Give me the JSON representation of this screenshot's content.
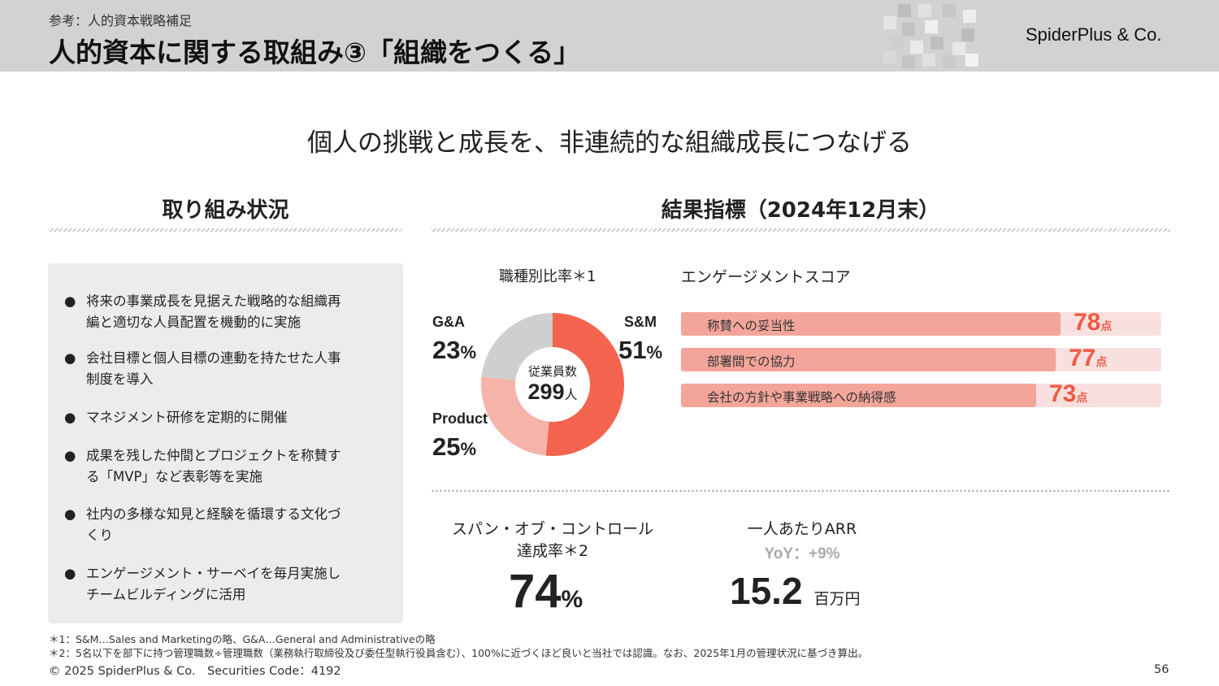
{
  "header": {
    "section_label": "参考：人的資本戦略補足",
    "title": "人的資本に関する取組み③「組織をつくる」",
    "logo": "SpiderPlus & Co."
  },
  "subtitle": "個人の挑戦と成長を、非連続的な組織成長につなげる",
  "left": {
    "heading": "取り組み状況",
    "bullets": [
      [
        "将来の事業成長を見据えた戦略的な組織再",
        "編と適切な人員配置を機動的に実施"
      ],
      [
        "会社目標と個人目標の連動を持たせた人事",
        "制度を導入"
      ],
      [
        "マネジメント研修を定期的に開催"
      ],
      [
        "成果を残した仲間とプロジェクトを称賛す",
        "る「MVP」など表彰等を実施"
      ],
      [
        "社内の多様な知見と経験を循環する文化づ",
        "くり"
      ],
      [
        "エンゲージメント・サーベイを毎月実施し",
        "チームビルディングに活用"
      ]
    ],
    "bullet_char": "●"
  },
  "right": {
    "heading": "結果指標（2024年12月末）"
  },
  "chart_data": [
    {
      "type": "pie",
      "title": "職種別比率＊1",
      "categories": [
        "S&M",
        "Product",
        "G&A"
      ],
      "values": [
        51,
        25,
        23
      ],
      "value_labels": [
        "51",
        "25",
        "23"
      ],
      "unit": "%",
      "colors": [
        "#f4644e",
        "#f6b3a9",
        "#cfcfcf"
      ],
      "center_label": "従業員数",
      "center_value": "299",
      "center_unit": "人"
    },
    {
      "type": "bar",
      "title": "エンゲージメントスコア",
      "categories": [
        "称賛への妥当性",
        "部署間での協力",
        "会社の方針や事業戦略への納得感"
      ],
      "values": [
        78,
        77,
        73
      ],
      "value_labels": [
        "78",
        "77",
        "73"
      ],
      "unit": "点",
      "xlim": [
        0,
        100
      ]
    }
  ],
  "metrics": {
    "span_title_1": "スパン・オブ・コントロール",
    "span_title_2": "達成率＊2",
    "span_value": "74",
    "span_unit": "%",
    "arr_title": "一人あたりARR",
    "arr_yoy": "YoY：+9%",
    "arr_value": "15.2",
    "arr_unit": "百万円"
  },
  "footer": {
    "note1": "＊1：S&M…Sales and Marketingの略、G&A…General and Administrativeの略",
    "note2": "＊2：5名以下を部下に持つ管理職数÷管理職数（業務執行取締役及び委任型執行役員含む）、100%に近づくほど良いと当社では認識。なお、2025年1月の管理状況に基づき算出。",
    "copyright": "© 2025 SpiderPlus & Co.　Securities Code：4192",
    "page_number": "56"
  },
  "colors": {
    "accent": "#f05a44",
    "header_bg": "#d2d2d2",
    "panel_bg": "#ececec"
  }
}
